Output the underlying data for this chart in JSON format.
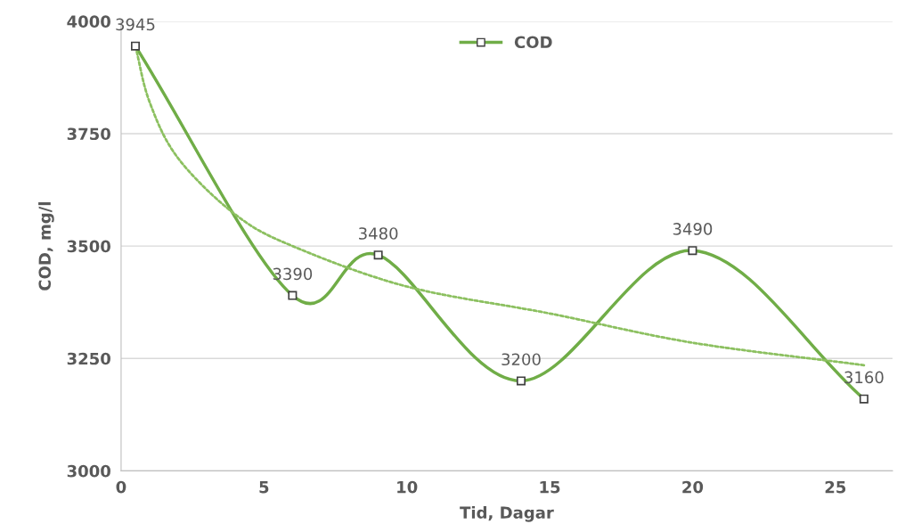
{
  "chart_data": {
    "type": "line",
    "xlabel": "Tid, Dagar",
    "ylabel": "COD, mg/l",
    "xlim": [
      0,
      27
    ],
    "xticks": [
      0,
      5,
      10,
      15,
      20,
      25
    ],
    "ylim": [
      3000,
      4000
    ],
    "yticks": [
      3000,
      3250,
      3500,
      3750,
      4000
    ],
    "grid": "y",
    "legend": "top",
    "marker": "square",
    "series": [
      {
        "name": "COD",
        "color": "#70ad47",
        "x": [
          0.5,
          6,
          9,
          14,
          20,
          26
        ],
        "values": [
          3945,
          3390,
          3480,
          3200,
          3490,
          3160
        ],
        "data_labels": true,
        "line_style": "solid"
      },
      {
        "color": "#8cc060",
        "x": [
          0.5,
          1,
          2,
          4,
          6,
          10,
          15,
          20,
          26
        ],
        "values": [
          3945,
          3820,
          3695,
          3570,
          3500,
          3410,
          3350,
          3285,
          3235
        ],
        "line_style": "dotted",
        "marker": "none"
      }
    ]
  }
}
